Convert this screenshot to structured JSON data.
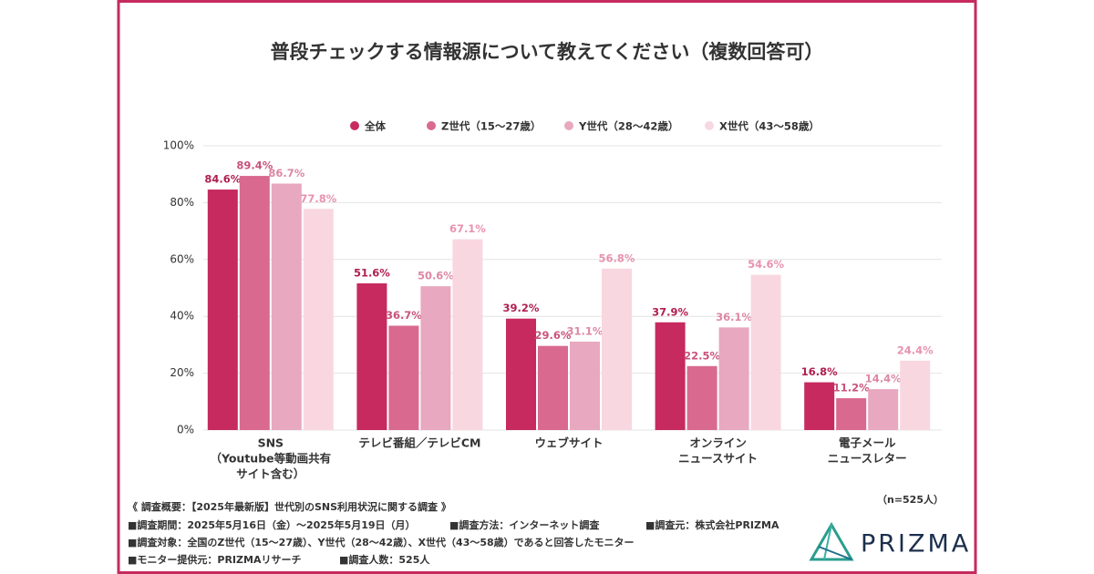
{
  "chart_data": {
    "type": "bar",
    "title": "普段チェックする情報源について教えてください（複数回答可）",
    "categories": [
      [
        "SNS",
        "（Youtube等動画共有",
        "サイト含む）"
      ],
      [
        "テレビ番組／テレビCM"
      ],
      [
        "ウェブサイト"
      ],
      [
        "オンライン",
        "ニュースサイト"
      ],
      [
        "電子メール",
        "ニュースレター"
      ]
    ],
    "series": [
      {
        "name": "全体",
        "color": "#c62a5e",
        "label_color": "#b0204f",
        "values": [
          84.6,
          51.6,
          39.2,
          37.9,
          16.8
        ],
        "value_labels": [
          "84.6%",
          "51.6%",
          "39.2%",
          "37.9%",
          "16.8%"
        ]
      },
      {
        "name": "Z世代（15〜27歳）",
        "color": "#d9698f",
        "label_color": "#c9547c",
        "values": [
          89.4,
          36.7,
          29.6,
          22.5,
          11.2
        ],
        "value_labels": [
          "89.4%",
          "36.7%",
          "29.6%",
          "22.5%",
          "11.2%"
        ]
      },
      {
        "name": "Y世代（28〜42歳）",
        "color": "#e8a8bf",
        "label_color": "#dc87a5",
        "values": [
          86.7,
          50.6,
          31.1,
          36.1,
          14.4
        ],
        "value_labels": [
          "86.7%",
          "50.6%",
          "31.1%",
          "36.1%",
          "14.4%"
        ]
      },
      {
        "name": "X世代（43〜58歳）",
        "color": "#f8d7e1",
        "label_color": "#e892b0",
        "values": [
          77.8,
          67.1,
          56.8,
          54.6,
          24.4
        ],
        "value_labels": [
          "77.8%",
          "67.1%",
          "56.8%",
          "54.6%",
          "24.4%"
        ]
      }
    ],
    "ylim": [
      0,
      100
    ],
    "yticks": [
      {
        "value": 0,
        "label": "0%"
      },
      {
        "value": 20,
        "label": "20%"
      },
      {
        "value": 40,
        "label": "40%"
      },
      {
        "value": 60,
        "label": "60%"
      },
      {
        "value": 80,
        "label": "80%"
      },
      {
        "value": 100,
        "label": "100%"
      }
    ],
    "grid": true,
    "annotation": "（n=525人）",
    "notes": [
      [
        "《 調査概要：【2025年最新版】世代別のSNS利用状況に関する調査 》"
      ],
      [
        "■調査期間：2025年5月16日（金）〜2025年5月19日（月）",
        "■調査方法：インターネット調査",
        "■調査元：株式会社PRIZMA"
      ],
      [
        "■調査対象：全国のZ世代（15〜27歳）、Y世代（28〜42歳）、X世代（43〜58歳）であると回答したモニター"
      ],
      [
        "■モニター提供元：PRIZMAリサーチ",
        "■調査人数：525人"
      ]
    ],
    "logo": "PRIZMA"
  }
}
